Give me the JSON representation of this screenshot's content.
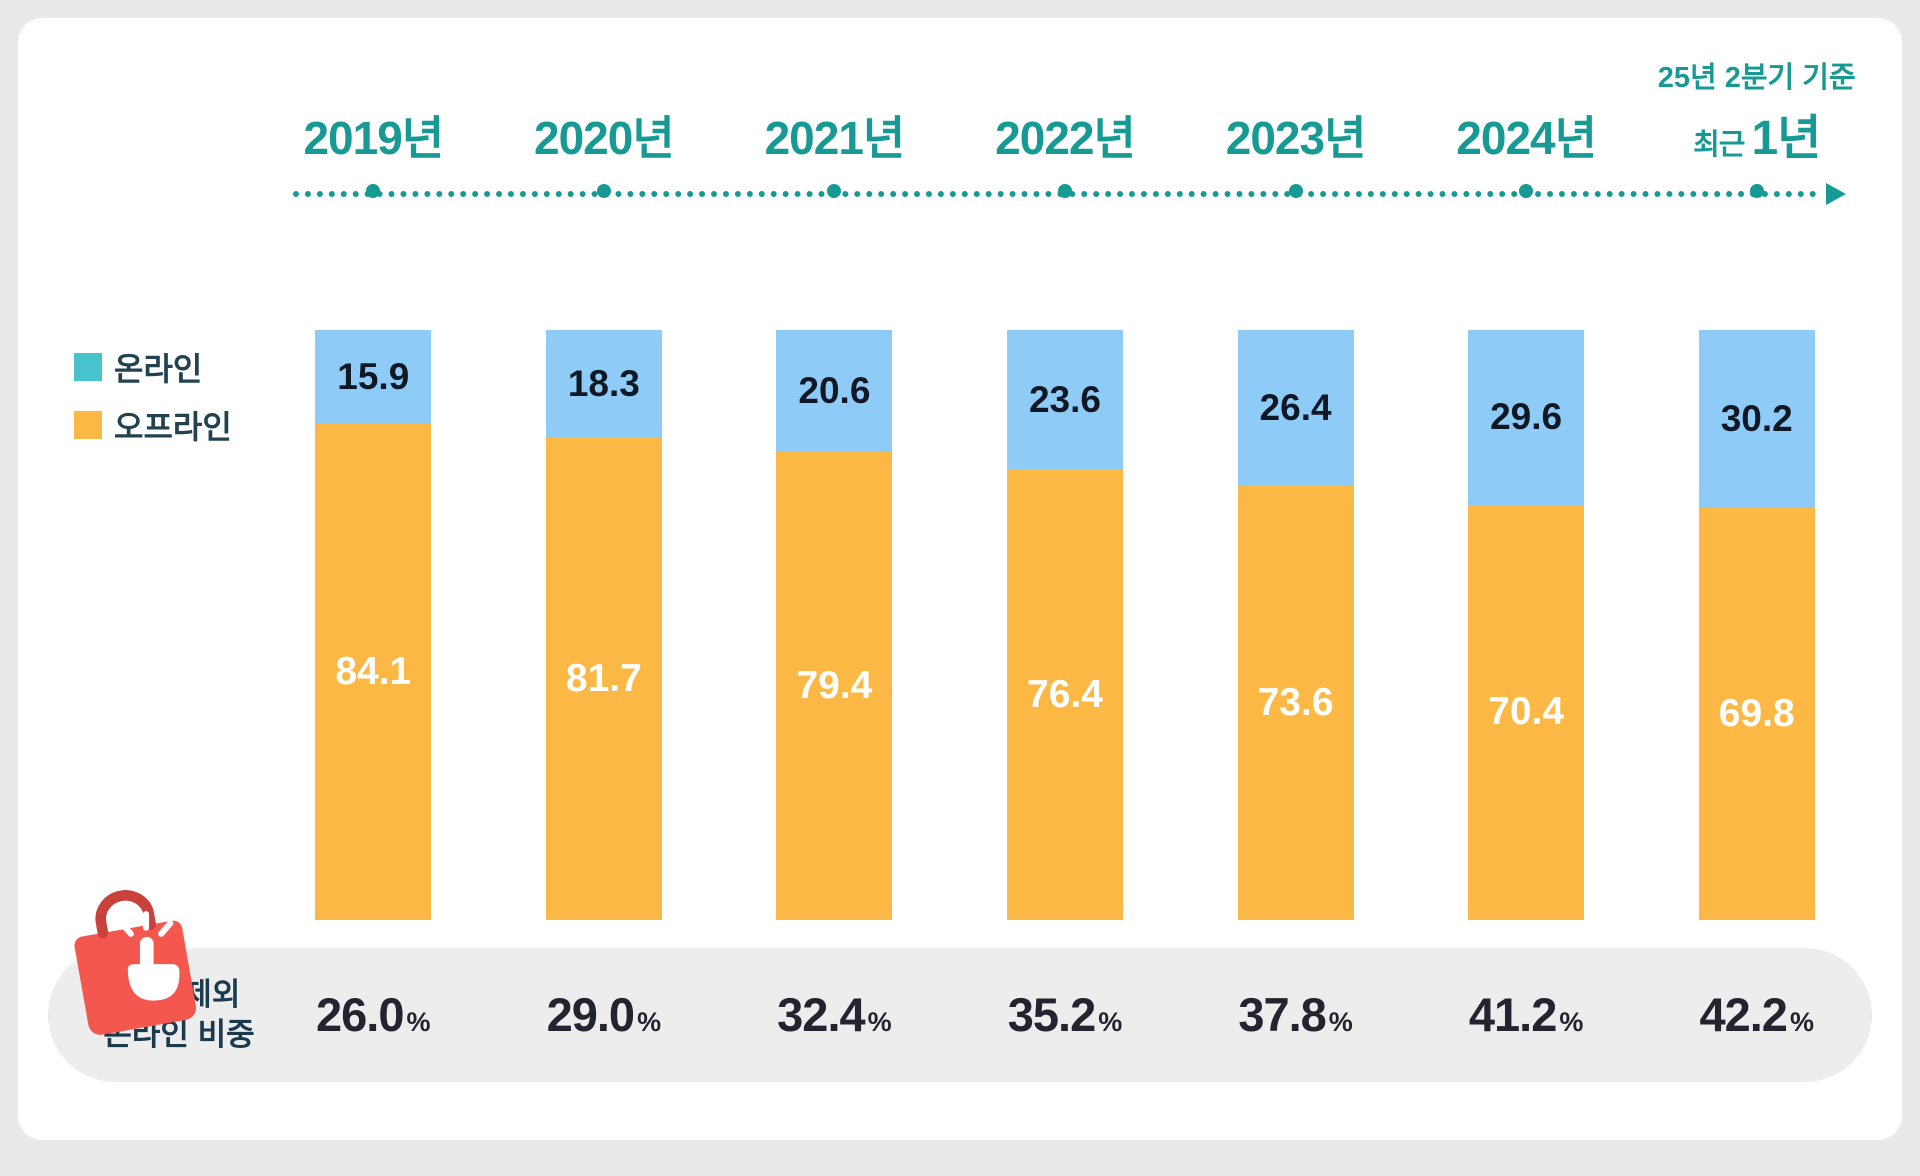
{
  "legend": {
    "online": "온라인",
    "offline": "오프라인"
  },
  "bottom_label": {
    "line1": "신선 제외",
    "line2": "온라인  비중"
  },
  "colors": {
    "teal_timeline": "#189a94",
    "online_bar": "#8ECBF6",
    "offline_bar": "#FBB844",
    "legend_online_swatch": "#49C3CB",
    "offline_value_text": "#FFFFFF",
    "online_value_text": "#101826",
    "pill_background": "#EDEDEE",
    "card_background": "#FFFFFF",
    "outer_background": "#E9E9EA",
    "bag_icon": "#F4574E"
  },
  "chart_data": {
    "type": "bar",
    "stacked": true,
    "title": "",
    "xlabel": "",
    "ylabel": "",
    "ylim": [
      0,
      100
    ],
    "legend_position": "left",
    "grid": false,
    "categories": [
      "2019년",
      "2020년",
      "2021년",
      "2022년",
      "2023년",
      "2024년",
      "최근 1년"
    ],
    "last_category": {
      "prefix": "최근",
      "main": "1년",
      "note": "25년 2분기 기준"
    },
    "series": [
      {
        "name": "온라인",
        "color": "#8ECBF6",
        "values": [
          15.9,
          18.3,
          20.6,
          23.6,
          26.4,
          29.6,
          30.2
        ]
      },
      {
        "name": "오프라인",
        "color": "#FBB844",
        "values": [
          84.1,
          81.7,
          79.4,
          76.4,
          73.6,
          70.4,
          69.8
        ]
      }
    ],
    "bottom_row": {
      "label": "신선 제외 온라인 비중",
      "unit": "%",
      "values": [
        "26.0",
        "29.0",
        "32.4",
        "35.2",
        "37.8",
        "41.2",
        "42.2"
      ]
    }
  }
}
